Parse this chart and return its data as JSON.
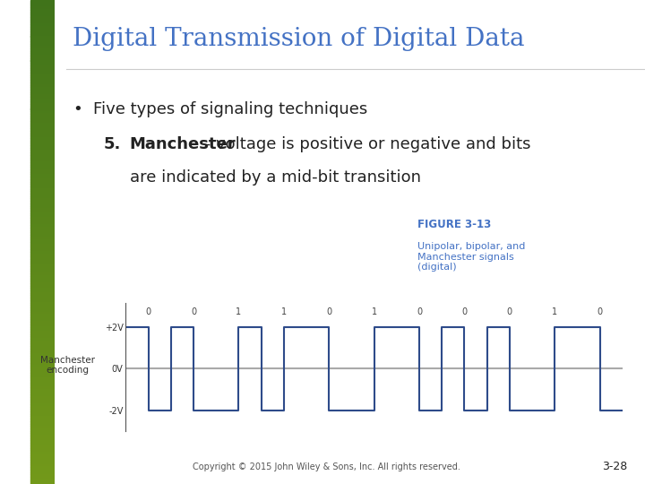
{
  "title": "Digital Transmission of Digital Data",
  "title_color": "#4472c4",
  "title_fontsize": 20,
  "bg_color": "#ffffff",
  "bullet_text": "Five types of signaling techniques",
  "item_num": "5.",
  "item_bold": "Manchester",
  "item_rest": " - voltage is positive or negative and bits",
  "item_rest2": "are indicated by a mid-bit transition",
  "figure_label": "FIGURE 3-13",
  "figure_sublabel": "Unipolar, bipolar, and\nManchester signals\n(digital)",
  "figure_label_color": "#4472c4",
  "figure_sublabel_color": "#4472c4",
  "ylabel_left": "Manchester\nencoding",
  "yticks": [
    "+2V",
    "0V",
    "-2V"
  ],
  "ytick_vals": [
    2,
    0,
    -2
  ],
  "bits": [
    0,
    0,
    1,
    1,
    0,
    1,
    0,
    0,
    0,
    1,
    0
  ],
  "signal_color": "#2e4b8a",
  "zero_line_color": "#aaaaaa",
  "copyright": "Copyright © 2015 John Wiley & Sons, Inc. All rights reserved.",
  "page_num": "3-28",
  "text_color": "#222222",
  "bullet_fontsize": 13,
  "item_fontsize": 13
}
